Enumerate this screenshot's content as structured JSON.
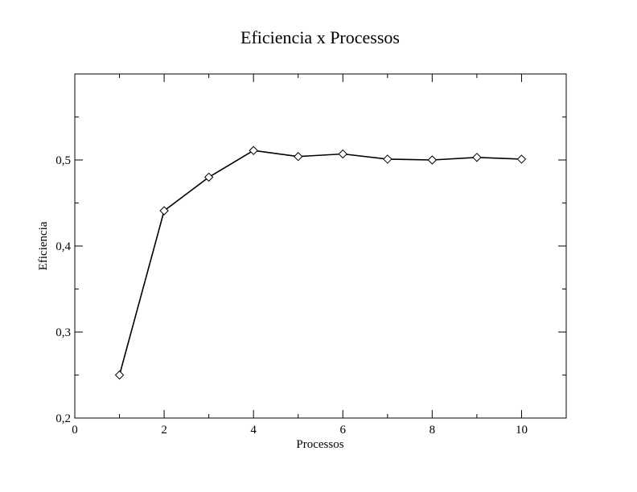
{
  "chart_data": {
    "type": "line",
    "title": "Eficiencia x Processos",
    "xlabel": "Processos",
    "ylabel": "Eficiencia",
    "xlim": [
      0,
      11
    ],
    "ylim": [
      0.2,
      0.6
    ],
    "x_ticks": [
      0,
      2,
      4,
      6,
      8,
      10
    ],
    "x_tick_labels": [
      "0",
      "2",
      "4",
      "6",
      "8",
      "10"
    ],
    "y_ticks": [
      0.2,
      0.3,
      0.4,
      0.5
    ],
    "y_tick_labels": [
      "0,2",
      "0,3",
      "0,4",
      "0,5"
    ],
    "grid": false,
    "marker": "diamond",
    "series": [
      {
        "x": [
          1,
          2,
          3,
          4,
          5,
          6,
          7,
          8,
          9,
          10
        ],
        "values": [
          0.25,
          0.441,
          0.48,
          0.511,
          0.504,
          0.507,
          0.501,
          0.5,
          0.503,
          0.501
        ]
      }
    ]
  }
}
